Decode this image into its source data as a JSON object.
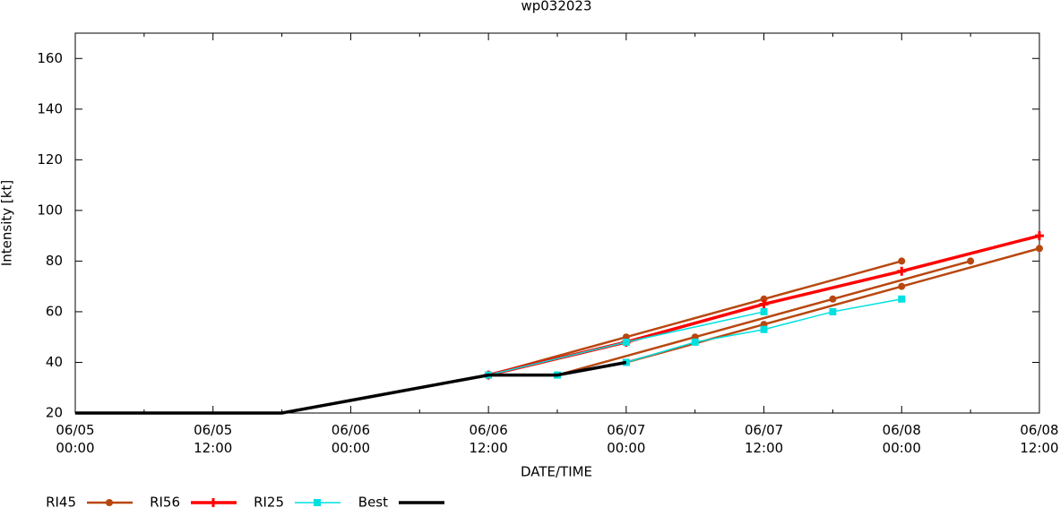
{
  "chart_data": {
    "type": "line",
    "title": "wp032023",
    "x_label": "DATE/TIME",
    "y_label": "Intensity [kt]",
    "xlim": [
      0,
      84
    ],
    "ylim": [
      20,
      170
    ],
    "xticks": [
      {
        "value": 0,
        "label": "06/05 00:00"
      },
      {
        "value": 12,
        "label": "06/05 12:00"
      },
      {
        "value": 24,
        "label": "06/06 00:00"
      },
      {
        "value": 36,
        "label": "06/06 12:00"
      },
      {
        "value": 48,
        "label": "06/07 00:00"
      },
      {
        "value": 60,
        "label": "06/07 12:00"
      },
      {
        "value": 72,
        "label": "06/08 00:00"
      },
      {
        "value": 84,
        "label": "06/08 12:00"
      }
    ],
    "yticks": [
      20,
      40,
      60,
      80,
      100,
      120,
      140,
      160
    ],
    "series": [
      {
        "name": "RI45",
        "color": "#b8470f",
        "marker": "circle",
        "line_width": 2.5,
        "x": [
          36,
          48,
          60,
          72,
          null,
          42,
          54,
          66,
          78,
          null,
          48,
          60,
          72,
          84
        ],
        "values": [
          35,
          50,
          65,
          80,
          null,
          35,
          50,
          65,
          80,
          null,
          40,
          55,
          70,
          85
        ]
      },
      {
        "name": "RI56",
        "color": "#ff0000",
        "marker": "plus",
        "line_width": 3.5,
        "x": [
          36,
          48,
          60,
          72,
          84
        ],
        "values": [
          35,
          48,
          63,
          76,
          90
        ]
      },
      {
        "name": "RI25",
        "color": "#00e0e0",
        "marker": "square",
        "line_width": 1.5,
        "x": [
          36,
          48,
          60,
          null,
          42,
          48,
          54,
          60,
          66,
          72
        ],
        "values": [
          35,
          48,
          60,
          null,
          35,
          40,
          48,
          53,
          60,
          65
        ]
      },
      {
        "name": "Best",
        "color": "#000000",
        "marker": "none",
        "line_width": 3.5,
        "x": [
          0,
          18,
          36,
          42,
          48
        ],
        "values": [
          20,
          20,
          35,
          35,
          40
        ]
      }
    ]
  }
}
